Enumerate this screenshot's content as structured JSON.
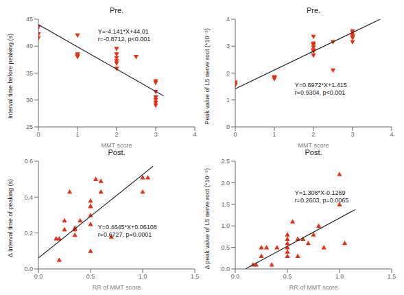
{
  "chart_data": [
    {
      "type": "scatter",
      "title": "Pre.",
      "xlabel": "MMT score",
      "ylabel": "Interval time before peaking (s)",
      "xlim": [
        0,
        4
      ],
      "ylim": [
        25,
        45
      ],
      "xticks": [
        0,
        1,
        2,
        3,
        4
      ],
      "yticks": [
        25,
        30,
        35,
        40,
        45
      ],
      "grid": false,
      "annotations": [
        "Y=-4.141*X+44.01",
        "r=-0.8712, p<0.001"
      ],
      "series": [
        {
          "type": "scatter",
          "color": "#E83010",
          "marker": "triangle-down",
          "x": [
            0,
            0,
            0,
            1,
            1,
            1,
            1,
            2,
            2,
            2,
            2,
            2,
            2,
            2.5,
            3,
            3,
            3,
            3,
            3,
            3,
            3
          ],
          "values": [
            43.5,
            42.2,
            41.5,
            42,
            38.5,
            38.2,
            38,
            39.5,
            38.5,
            37.8,
            37.2,
            36.8,
            35.8,
            38,
            33.5,
            33.2,
            31.5,
            30.5,
            30,
            29.5,
            29
          ]
        },
        {
          "type": "line",
          "color": "#2a2a2a",
          "x": [
            0,
            3.2
          ],
          "values": [
            44.01,
            30.7588
          ]
        }
      ]
    },
    {
      "type": "scatter",
      "title": "Pre.",
      "xlabel": "MMT score",
      "ylabel": "Peak value of L5 nerve root (*10⁻⁵)",
      "xlim": [
        0,
        4
      ],
      "ylim": [
        0,
        4
      ],
      "xticks": [
        0,
        1,
        2,
        3,
        4
      ],
      "yticks": [
        0,
        1,
        2,
        3,
        4
      ],
      "grid": false,
      "annotations": [
        "Y=0.6972*X+1.415",
        "r=0.9304, p<0.001"
      ],
      "series": [
        {
          "type": "scatter",
          "color": "#E83010",
          "marker": "triangle-down",
          "x": [
            0,
            0,
            0,
            1,
            1,
            1,
            2,
            2,
            2,
            2,
            2,
            2,
            2,
            2.5,
            2.5,
            3,
            3,
            3,
            3,
            3,
            3
          ],
          "values": [
            1.65,
            1.6,
            1.55,
            1.85,
            1.82,
            1.78,
            3.35,
            3.1,
            3.05,
            2.95,
            2.85,
            2.8,
            2.65,
            3.15,
            2.1,
            3.55,
            3.5,
            3.4,
            3.35,
            3.3,
            3.15
          ]
        },
        {
          "type": "line",
          "color": "#2a2a2a",
          "x": [
            0,
            3.7
          ],
          "values": [
            1.415,
            3.99464
          ]
        }
      ]
    },
    {
      "type": "scatter",
      "title": "Post.",
      "xlabel": "RR of MMT score",
      "ylabel": "Δ Interval time of peaking (s)",
      "xlim": [
        0.0,
        1.5
      ],
      "ylim": [
        0.0,
        0.6
      ],
      "xticks": [
        {
          "value": 0,
          "label": "0.0"
        },
        0.5,
        {
          "value": 1,
          "label": "1.0"
        },
        1.5
      ],
      "yticks": [
        {
          "value": 0,
          "label": "0.0"
        },
        0.2,
        0.4,
        0.6
      ],
      "grid": false,
      "annotations": [
        "Y=0.4645*X+0.06108",
        "r=0.6727, p=0.0001"
      ],
      "series": [
        {
          "type": "scatter",
          "color": "#E83010",
          "marker": "triangle",
          "x": [
            0.17,
            0.2,
            0.2,
            0.25,
            0.25,
            0.3,
            0.35,
            0.35,
            0.35,
            0.4,
            0.5,
            0.5,
            0.5,
            0.5,
            0.5,
            0.5,
            0.55,
            0.6,
            0.6,
            0.7,
            1.0,
            1.0,
            1.05
          ],
          "values": [
            0.17,
            0.17,
            0.05,
            0.27,
            0.22,
            0.43,
            0.23,
            0.22,
            0.19,
            0.27,
            0.38,
            0.35,
            0.35,
            0.3,
            0.25,
            0.1,
            0.5,
            0.49,
            0.43,
            0.18,
            0.51,
            0.43,
            0.51
          ]
        },
        {
          "type": "line",
          "color": "#2a2a2a",
          "x": [
            0.0,
            1.1
          ],
          "values": [
            0.06108,
            0.57203
          ]
        }
      ]
    },
    {
      "type": "scatter",
      "title": "Post.",
      "xlabel": "RR of MMT score",
      "ylabel": "Δ peak value of L5 nerve root (*10⁻⁵)",
      "xlim": [
        0.0,
        1.5
      ],
      "ylim": [
        0.0,
        2.5
      ],
      "xticks": [
        {
          "value": 0,
          "label": "0.0"
        },
        0.5,
        {
          "value": 1,
          "label": "1.0"
        },
        1.5
      ],
      "yticks": [
        {
          "value": 0,
          "label": "0.0"
        },
        0.5,
        {
          "value": 1,
          "label": "1.0"
        },
        1.5,
        {
          "value": 2,
          "label": "2.0"
        },
        2.5
      ],
      "grid": false,
      "annotations": [
        "Y=1.308*X-0.1269",
        "r=0.2603, p=0.0065"
      ],
      "series": [
        {
          "type": "scatter",
          "color": "#E83010",
          "marker": "triangle",
          "x": [
            0.17,
            0.2,
            0.25,
            0.25,
            0.3,
            0.35,
            0.4,
            0.5,
            0.5,
            0.5,
            0.5,
            0.5,
            0.5,
            0.55,
            0.6,
            0.6,
            0.65,
            0.7,
            0.75,
            0.8,
            0.85,
            1.0,
            1.0,
            1.05
          ],
          "values": [
            0.1,
            0.1,
            0.3,
            0.5,
            0.5,
            0.1,
            0.5,
            0.3,
            0.4,
            0.5,
            0.6,
            0.7,
            0.8,
            1.1,
            0.3,
            0.7,
            0.7,
            0.6,
            0.8,
            1.0,
            0.5,
            1.5,
            2.2,
            0.6
          ]
        },
        {
          "type": "line",
          "color": "#2a2a2a",
          "x": [
            0.1,
            1.15
          ],
          "values": [
            0.0039,
            1.3773
          ]
        }
      ]
    }
  ]
}
